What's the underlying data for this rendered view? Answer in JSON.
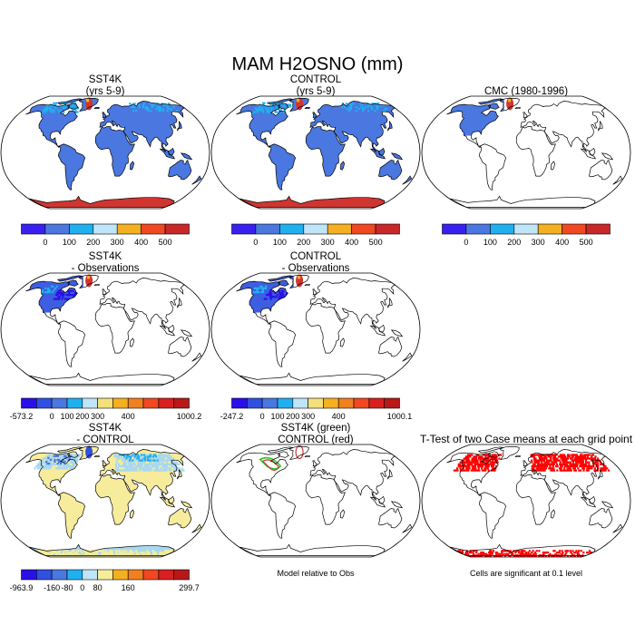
{
  "title": "MAM H2OSNO (mm)",
  "colors": {
    "ocean": "#ffffff",
    "outline": "#000000",
    "blue": "#4a78e0",
    "red": "#d03530",
    "lightblue": "#a8d8f0",
    "yellow": "#f6ec9c",
    "sig_red": "#ff0000",
    "green": "#22cc22"
  },
  "chart_data": [
    {
      "type": "heatmap",
      "id": "sst4k",
      "title": [
        "SST4K",
        "(yrs 5-9)"
      ],
      "colorbar": {
        "colors": [
          "#3a20f0",
          "#4a78e0",
          "#20b0f0",
          "#c0e4f8",
          "#f4b020",
          "#f04820",
          "#c82828"
        ],
        "labels": [
          "0",
          "100",
          "200",
          "300",
          "400",
          "500"
        ]
      },
      "fill": "snow-global"
    },
    {
      "type": "heatmap",
      "id": "control",
      "title": [
        "CONTROL",
        "(yrs 5-9)"
      ],
      "colorbar": {
        "colors": [
          "#3a20f0",
          "#4a78e0",
          "#20b0f0",
          "#c0e4f8",
          "#f4b020",
          "#f04820",
          "#c82828"
        ],
        "labels": [
          "0",
          "100",
          "200",
          "300",
          "400",
          "500"
        ]
      },
      "fill": "snow-global"
    },
    {
      "type": "heatmap",
      "id": "cmc",
      "title": [
        "CMC (1980-1996)"
      ],
      "colorbar": {
        "colors": [
          "#3a20f0",
          "#4a78e0",
          "#20b0f0",
          "#c0e4f8",
          "#f4b020",
          "#f04820",
          "#c82828"
        ],
        "labels": [
          "0",
          "100",
          "200",
          "300",
          "400",
          "500"
        ]
      },
      "fill": "obs-na"
    },
    {
      "type": "heatmap",
      "id": "sst4k-obs",
      "title": [
        "SST4K",
        "- Observations"
      ],
      "colorbar": {
        "colors": [
          "#2a10e8",
          "#3050e0",
          "#4a78e0",
          "#20b0f0",
          "#c0e4f8",
          "#f4e07a",
          "#f4b020",
          "#f08020",
          "#f04820",
          "#d82020",
          "#b81818"
        ],
        "labels": [
          "-573.2",
          "0",
          "100",
          "200",
          "300",
          "400",
          "1000.2"
        ]
      },
      "fill": "diff-na"
    },
    {
      "type": "heatmap",
      "id": "control-obs",
      "title": [
        "CONTROL",
        "- Observations"
      ],
      "colorbar": {
        "colors": [
          "#2a10e8",
          "#3050e0",
          "#4a78e0",
          "#20b0f0",
          "#c0e4f8",
          "#f4e07a",
          "#f4b020",
          "#f08020",
          "#f04820",
          "#d82020",
          "#b81818"
        ],
        "labels": [
          "-247.2",
          "0",
          "100",
          "200",
          "300",
          "400",
          "1000.1"
        ]
      },
      "fill": "diff-na"
    },
    {
      "type": "heatmap",
      "id": "sst4k-control",
      "title": [
        "SST4K",
        "- CONTROL"
      ],
      "colorbar": {
        "colors": [
          "#2a10e8",
          "#3050e0",
          "#4a78e0",
          "#20b0f0",
          "#c0e4f8",
          "#f6ec9c",
          "#f4b020",
          "#f08020",
          "#f04820",
          "#d82020",
          "#b81818"
        ],
        "labels": [
          "-963.9",
          "-160",
          "-80",
          "0",
          "80",
          "160",
          "299.7"
        ]
      },
      "fill": "diff-global"
    },
    {
      "type": "heatmap",
      "id": "contours",
      "title": [
        "SST4K (green)",
        "CONTROL (red)"
      ],
      "note": "Model relative to Obs",
      "fill": "contours"
    },
    {
      "type": "heatmap",
      "id": "ttest",
      "title": [
        "T-Test of two Case means at each grid point"
      ],
      "note": "Cells are significant at 0.1 level",
      "fill": "ttest"
    }
  ]
}
